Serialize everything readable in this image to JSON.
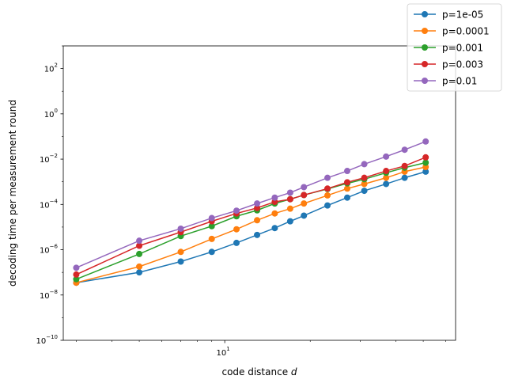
{
  "chart_data": {
    "type": "line",
    "xlabel_main": "code distance ",
    "xlabel_var": "d",
    "ylabel": "decoding time per measurement round",
    "xscale": "log",
    "yscale": "log",
    "xlim": [
      2.7,
      65
    ],
    "ylim": [
      1e-10,
      1000
    ],
    "x_ticks": [
      {
        "value": 10,
        "base": "10",
        "exp": "1"
      }
    ],
    "y_ticks": [
      {
        "value": 1e-10,
        "base": "10",
        "exp": "−10"
      },
      {
        "value": 1e-08,
        "base": "10",
        "exp": "−8"
      },
      {
        "value": 1e-06,
        "base": "10",
        "exp": "−6"
      },
      {
        "value": 0.0001,
        "base": "10",
        "exp": "−4"
      },
      {
        "value": 0.01,
        "base": "10",
        "exp": "−2"
      },
      {
        "value": 1,
        "base": "10",
        "exp": "0"
      },
      {
        "value": 100,
        "base": "10",
        "exp": "2"
      }
    ],
    "legend_position": "top-right",
    "x": [
      3,
      5,
      7,
      9,
      11,
      13,
      15,
      17,
      19,
      23,
      27,
      31,
      37,
      43,
      51
    ],
    "series": [
      {
        "name": "p=1e-05",
        "color": "#1f77b4",
        "values": [
          3.5e-08,
          1e-07,
          3e-07,
          8e-07,
          2e-06,
          4.5e-06,
          9e-06,
          1.8e-05,
          3.2e-05,
          9e-05,
          0.0002,
          0.0004,
          0.0008,
          0.0015,
          0.0028
        ]
      },
      {
        "name": "p=0.0001",
        "color": "#ff7f0e",
        "values": [
          3.5e-08,
          1.8e-07,
          8e-07,
          3e-06,
          8e-06,
          2e-05,
          4e-05,
          6.5e-05,
          0.00011,
          0.00025,
          0.0005,
          0.0008,
          0.0015,
          0.0028,
          0.0045
        ]
      },
      {
        "name": "p=0.001",
        "color": "#2ca02c",
        "values": [
          5e-08,
          6.5e-07,
          4e-06,
          1.1e-05,
          3e-05,
          5.5e-05,
          0.00011,
          0.00017,
          0.00026,
          0.00048,
          0.00085,
          0.0013,
          0.0025,
          0.0042,
          0.007
        ]
      },
      {
        "name": "p=0.003",
        "color": "#d62728",
        "values": [
          8e-08,
          1.5e-06,
          6e-06,
          1.8e-05,
          4e-05,
          7e-05,
          0.00013,
          0.00017,
          0.00026,
          0.0005,
          0.00095,
          0.0015,
          0.003,
          0.005,
          0.012
        ]
      },
      {
        "name": "p=0.01",
        "color": "#9467bd",
        "values": [
          1.6e-07,
          2.5e-06,
          8.5e-06,
          2.5e-05,
          5.3e-05,
          0.00011,
          0.0002,
          0.00033,
          0.00058,
          0.0015,
          0.003,
          0.006,
          0.013,
          0.026,
          0.06
        ]
      }
    ]
  }
}
